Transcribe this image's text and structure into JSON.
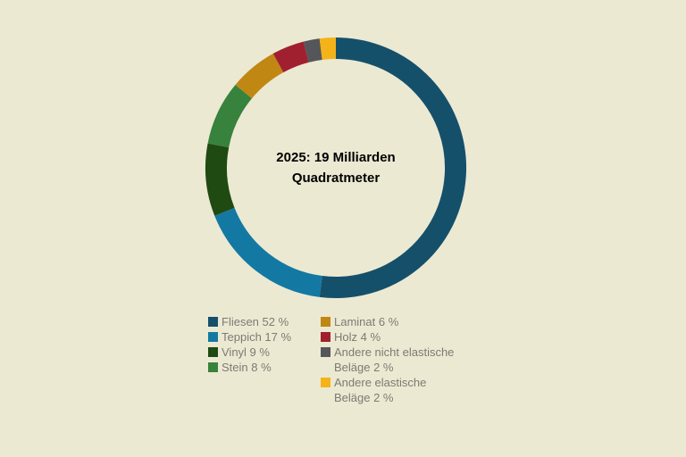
{
  "background_color": "#ECE9D3",
  "chart_data": {
    "type": "donut",
    "center_label_line1": "2025: 19 Milliarden",
    "center_label_line2": "Quadratmeter",
    "start_angle_deg": 0,
    "direction": "clockwise",
    "total_pct": 100,
    "ring": {
      "mid_radius_px": 134,
      "thickness_px": 24
    },
    "segments": [
      {
        "label": "Fliesen",
        "value_pct": 52,
        "color": "#15506B",
        "legend_lines": [
          "Fliesen 52 %"
        ]
      },
      {
        "label": "Teppich",
        "value_pct": 17,
        "color": "#1379A3",
        "legend_lines": [
          "Teppich 17 %"
        ]
      },
      {
        "label": "Vinyl",
        "value_pct": 9,
        "color": "#1F4A12",
        "legend_lines": [
          "Vinyl 9 %"
        ]
      },
      {
        "label": "Stein",
        "value_pct": 8,
        "color": "#37823C",
        "legend_lines": [
          "Stein 8 %"
        ]
      },
      {
        "label": "Laminat",
        "value_pct": 6,
        "color": "#C18713",
        "legend_lines": [
          "Laminat 6 %"
        ]
      },
      {
        "label": "Holz",
        "value_pct": 4,
        "color": "#A02030",
        "legend_lines": [
          "Holz 4 %"
        ]
      },
      {
        "label": "Andere nicht elastische Beläge",
        "value_pct": 2,
        "color": "#55565A",
        "legend_lines": [
          "Andere nicht elastische",
          "Beläge 2 %"
        ]
      },
      {
        "label": "Andere elastische Beläge",
        "value_pct": 2,
        "color": "#F5B31A",
        "legend_lines": [
          "Andere elastische",
          "Beläge 2 %"
        ]
      }
    ],
    "legend": {
      "position": "bottom",
      "columns": [
        [
          0,
          1,
          2,
          3
        ],
        [
          4,
          5,
          6,
          7
        ]
      ],
      "text_color": "#7C7B71"
    }
  }
}
